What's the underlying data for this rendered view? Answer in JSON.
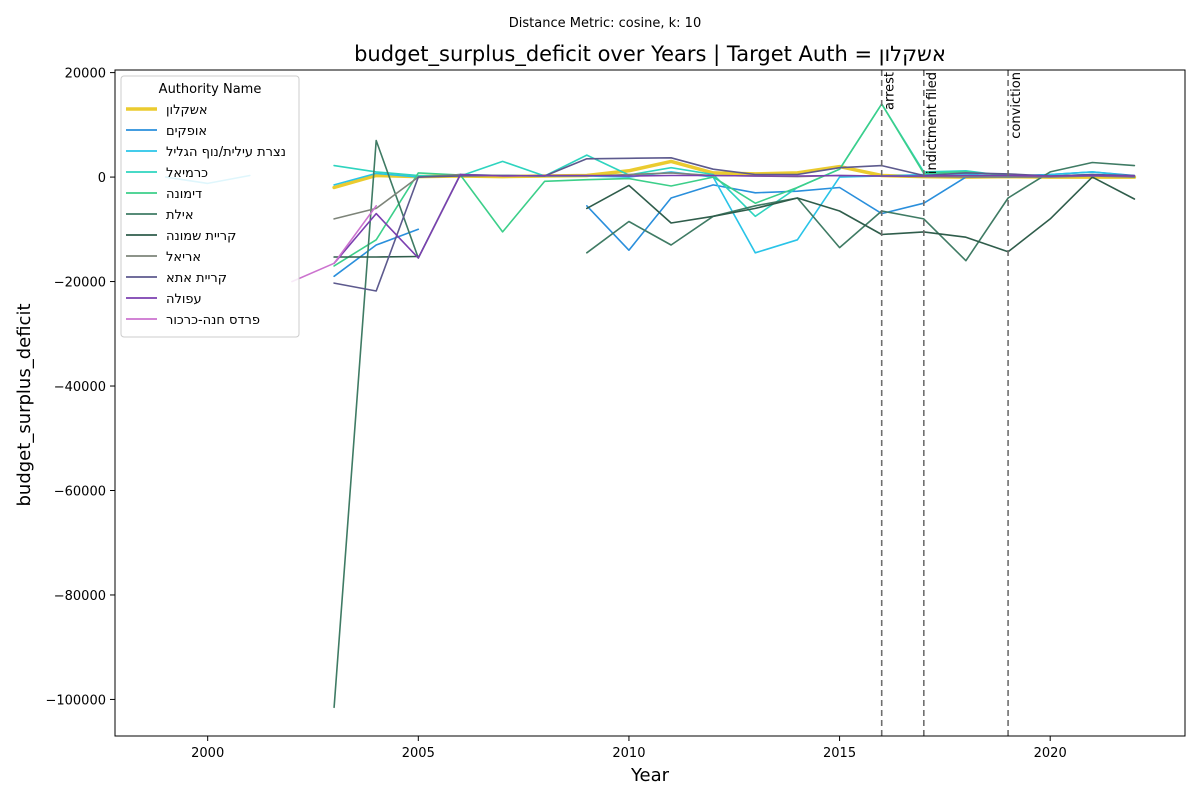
{
  "chart_data": {
    "type": "line",
    "subtitle": "Distance Metric: cosine, k: 10",
    "title": "budget_surplus_deficit over Years | Target Auth = אשקלון",
    "xlabel": "Year",
    "ylabel": "budget_surplus_deficit",
    "xlim": [
      1997.8,
      2023.2
    ],
    "ylim": [
      -107000,
      20500
    ],
    "xticks": [
      2000,
      2005,
      2010,
      2015,
      2020
    ],
    "yticks": [
      -100000,
      -80000,
      -60000,
      -40000,
      -20000,
      0,
      20000
    ],
    "grid": false,
    "legend": {
      "title": "Authority Name",
      "placement": "top-left"
    },
    "events": [
      {
        "x": 2016,
        "label": "arrest"
      },
      {
        "x": 2017,
        "label": "indictment filed"
      },
      {
        "x": 2019,
        "label": "conviction"
      }
    ],
    "series": [
      {
        "name": "אשקלון",
        "color": "#ebcb2f",
        "width": 3.5,
        "target": true,
        "points": [
          [
            2003,
            -2000
          ],
          [
            2004,
            300
          ],
          [
            2005,
            100
          ],
          [
            2006,
            200
          ],
          [
            2007,
            100
          ],
          [
            2008,
            200
          ],
          [
            2009,
            300
          ],
          [
            2010,
            1200
          ],
          [
            2011,
            3000
          ],
          [
            2012,
            800
          ],
          [
            2013,
            600
          ],
          [
            2014,
            800
          ],
          [
            2015,
            2000
          ],
          [
            2016,
            300
          ],
          [
            2017,
            100
          ],
          [
            2018,
            0
          ],
          [
            2019,
            100
          ],
          [
            2020,
            0
          ],
          [
            2021,
            0
          ],
          [
            2022,
            0
          ]
        ]
      },
      {
        "name": "אופקים",
        "color": "#2a8fdc",
        "segments": [
          [
            [
              2003,
              -19000
            ],
            [
              2004,
              -13000
            ],
            [
              2005,
              -10000
            ]
          ],
          [
            [
              2009,
              -5500
            ],
            [
              2010,
              -14000
            ],
            [
              2011,
              -4000
            ],
            [
              2012,
              -1500
            ],
            [
              2013,
              -3000
            ],
            [
              2014,
              -2700
            ],
            [
              2015,
              -2000
            ],
            [
              2016,
              -7000
            ],
            [
              2017,
              -5000
            ],
            [
              2018,
              0
            ],
            [
              2019,
              200
            ],
            [
              2020,
              500
            ],
            [
              2021,
              1000
            ],
            [
              2022,
              300
            ]
          ]
        ]
      },
      {
        "name": "נצרת עילית/נוף הגליל",
        "color": "#29c4e8",
        "segments": [
          [
            [
              1999,
              0
            ],
            [
              2000,
              -1200
            ],
            [
              2001,
              300
            ]
          ],
          [
            [
              2003,
              -1500
            ],
            [
              2004,
              700
            ],
            [
              2005,
              0
            ],
            [
              2006,
              500
            ],
            [
              2007,
              300
            ],
            [
              2008,
              200
            ],
            [
              2009,
              200
            ],
            [
              2010,
              0
            ],
            [
              2011,
              1000
            ],
            [
              2012,
              0
            ],
            [
              2013,
              -14500
            ],
            [
              2014,
              -12000
            ],
            [
              2015,
              0
            ],
            [
              2016,
              200
            ],
            [
              2017,
              500
            ],
            [
              2018,
              600
            ],
            [
              2019,
              0
            ],
            [
              2020,
              500
            ],
            [
              2021,
              1000
            ],
            [
              2022,
              200
            ]
          ]
        ]
      },
      {
        "name": "כרמיאל",
        "color": "#2ed4bf",
        "points": [
          [
            2003,
            2200
          ],
          [
            2004,
            1000
          ],
          [
            2005,
            300
          ],
          [
            2006,
            200
          ],
          [
            2007,
            3000
          ],
          [
            2008,
            200
          ],
          [
            2009,
            4200
          ],
          [
            2010,
            400
          ],
          [
            2011,
            1800
          ],
          [
            2012,
            500
          ],
          [
            2013,
            -7500
          ],
          [
            2014,
            -2000
          ],
          [
            2015,
            1500
          ],
          [
            2016,
            14000
          ],
          [
            2017,
            1000
          ],
          [
            2018,
            1200
          ],
          [
            2019,
            200
          ],
          [
            2020,
            100
          ],
          [
            2021,
            500
          ],
          [
            2022,
            0
          ]
        ]
      },
      {
        "name": "דימונה",
        "color": "#3ccf8a",
        "points": [
          [
            2003,
            -17000
          ],
          [
            2004,
            -12000
          ],
          [
            2005,
            800
          ],
          [
            2006,
            400
          ],
          [
            2007,
            -10500
          ],
          [
            2008,
            -800
          ],
          [
            2009,
            -500
          ],
          [
            2010,
            -300
          ],
          [
            2011,
            -1700
          ],
          [
            2012,
            0
          ],
          [
            2013,
            -5000
          ],
          [
            2014,
            -2000
          ],
          [
            2015,
            1500
          ],
          [
            2016,
            14000
          ],
          [
            2017,
            700
          ],
          [
            2018,
            1000
          ],
          [
            2019,
            300
          ],
          [
            2020,
            200
          ],
          [
            2021,
            500
          ],
          [
            2022,
            0
          ]
        ]
      },
      {
        "name": "אילת",
        "color": "#3f7b64",
        "segments": [
          [
            [
              2003,
              -101500
            ],
            [
              2004,
              7000
            ],
            [
              2005,
              -15500
            ],
            [
              2006,
              500
            ]
          ],
          [
            [
              2009,
              -14500
            ],
            [
              2010,
              -8500
            ],
            [
              2011,
              -13000
            ],
            [
              2012,
              -7500
            ],
            [
              2013,
              -5500
            ],
            [
              2014,
              -4000
            ],
            [
              2015,
              -13500
            ],
            [
              2016,
              -6500
            ],
            [
              2017,
              -8000
            ],
            [
              2018,
              -16000
            ],
            [
              2019,
              -4000
            ],
            [
              2020,
              1000
            ],
            [
              2021,
              2800
            ],
            [
              2022,
              2200
            ]
          ]
        ]
      },
      {
        "name": "קריית שמונה",
        "color": "#2f5d4b",
        "segments": [
          [
            [
              2003,
              -15300
            ],
            [
              2004,
              -15300
            ],
            [
              2005,
              -15200
            ]
          ],
          [
            [
              2009,
              -6000
            ],
            [
              2010,
              -1600
            ],
            [
              2011,
              -8800
            ],
            [
              2012,
              -7500
            ],
            [
              2013,
              -6000
            ],
            [
              2014,
              -4000
            ],
            [
              2015,
              -6500
            ],
            [
              2016,
              -11000
            ],
            [
              2017,
              -10500
            ],
            [
              2018,
              -11500
            ],
            [
              2019,
              -14300
            ],
            [
              2020,
              -8000
            ],
            [
              2021,
              0
            ],
            [
              2022,
              -4200
            ]
          ]
        ]
      },
      {
        "name": "אריאל",
        "color": "#7d8479",
        "points": [
          [
            2003,
            -8000
          ],
          [
            2004,
            -6000
          ],
          [
            2005,
            0
          ],
          [
            2006,
            500
          ],
          [
            2007,
            300
          ],
          [
            2008,
            200
          ],
          [
            2009,
            200
          ],
          [
            2010,
            500
          ],
          [
            2011,
            800
          ],
          [
            2012,
            300
          ],
          [
            2013,
            200
          ],
          [
            2014,
            100
          ],
          [
            2015,
            300
          ],
          [
            2016,
            200
          ],
          [
            2017,
            100
          ],
          [
            2018,
            0
          ],
          [
            2019,
            0
          ],
          [
            2020,
            0
          ],
          [
            2021,
            200
          ],
          [
            2022,
            0
          ]
        ]
      },
      {
        "name": "קריית אתא",
        "color": "#5d5a8e",
        "points": [
          [
            2003,
            -20300
          ],
          [
            2004,
            -21800
          ],
          [
            2005,
            0
          ],
          [
            2006,
            200
          ],
          [
            2007,
            300
          ],
          [
            2008,
            200
          ],
          [
            2009,
            3500
          ],
          [
            2010,
            3600
          ],
          [
            2011,
            3700
          ],
          [
            2012,
            1500
          ],
          [
            2013,
            500
          ],
          [
            2014,
            500
          ],
          [
            2015,
            1800
          ],
          [
            2016,
            2200
          ],
          [
            2017,
            300
          ],
          [
            2018,
            800
          ],
          [
            2019,
            600
          ],
          [
            2020,
            200
          ],
          [
            2021,
            500
          ],
          [
            2022,
            300
          ]
        ]
      },
      {
        "name": "עפולה",
        "color": "#7b3fb0",
        "points": [
          [
            2003,
            -16500
          ],
          [
            2004,
            -7000
          ],
          [
            2005,
            -15500
          ],
          [
            2006,
            500
          ],
          [
            2007,
            200
          ],
          [
            2008,
            300
          ],
          [
            2009,
            300
          ],
          [
            2010,
            200
          ],
          [
            2011,
            300
          ],
          [
            2012,
            300
          ],
          [
            2013,
            200
          ],
          [
            2014,
            200
          ],
          [
            2015,
            300
          ],
          [
            2016,
            200
          ],
          [
            2017,
            200
          ],
          [
            2018,
            300
          ],
          [
            2019,
            300
          ],
          [
            2020,
            200
          ],
          [
            2021,
            300
          ],
          [
            2022,
            200
          ]
        ]
      },
      {
        "name": "פרדס חנה-כרכור",
        "color": "#cc73cf",
        "points": [
          [
            2002,
            -20000
          ],
          [
            2003,
            -16500
          ],
          [
            2004,
            -5500
          ]
        ]
      }
    ]
  }
}
